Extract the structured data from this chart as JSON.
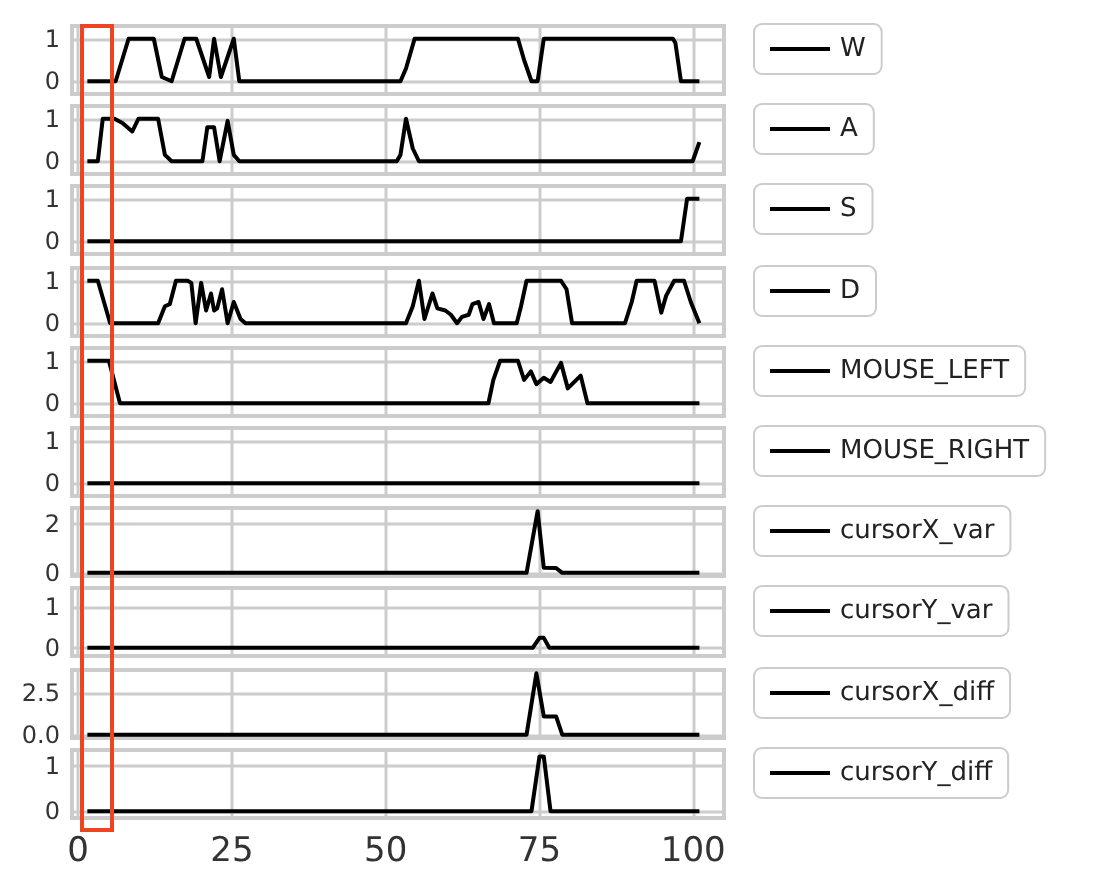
{
  "chart_data": [
    {
      "type": "line",
      "series": [
        {
          "name": "W",
          "color": "#000000",
          "x": [
            1.5,
            6.1,
            8.2,
            12.3,
            13.6,
            15.2,
            17.3,
            19.2,
            21.3,
            22.1,
            23.2,
            25.3,
            26.2,
            52.4,
            53.3,
            54.7,
            71.5,
            72.5,
            73.7,
            74.7,
            75.7,
            96.7,
            97.1,
            98,
            101
          ],
          "values": [
            0,
            0,
            1,
            1,
            0.1,
            0,
            1,
            1,
            0.1,
            1,
            0.1,
            1,
            0,
            0,
            0.3,
            1,
            1,
            0.5,
            0,
            0,
            1,
            1,
            0.9,
            0,
            0
          ]
        }
      ],
      "xlim": [
        -1,
        105
      ],
      "ylim": [
        -0.3,
        1.3
      ],
      "xticks": [
        0,
        25,
        50,
        75,
        100
      ],
      "yticks": [
        0,
        1
      ],
      "tick_labels": "y",
      "grid": true,
      "legend": "right"
    },
    {
      "type": "line",
      "series": [
        {
          "name": "A",
          "color": "#000000",
          "x": [
            1.5,
            3.2,
            4,
            5.9,
            7.2,
            8.8,
            9.8,
            13,
            14.1,
            15.2,
            20.2,
            21,
            22.1,
            23,
            24.3,
            25.3,
            26.2,
            51.8,
            52.4,
            53.3,
            54.4,
            55.4,
            99.9,
            101
          ],
          "values": [
            0,
            0,
            1,
            1,
            0.9,
            0.7,
            1,
            1,
            0.15,
            0,
            0,
            0.8,
            0.8,
            0,
            0.95,
            0.15,
            0,
            0,
            0.15,
            1,
            0.3,
            0,
            0,
            0.45
          ]
        }
      ],
      "xlim": [
        -1,
        105
      ],
      "ylim": [
        -0.3,
        1.3
      ],
      "xticks": [
        0,
        25,
        50,
        75,
        100
      ],
      "yticks": [
        0,
        1
      ],
      "tick_labels": "y",
      "grid": true,
      "legend": "right"
    },
    {
      "type": "line",
      "series": [
        {
          "name": "S",
          "color": "#000000",
          "x": [
            1.5,
            98,
            99,
            101
          ],
          "values": [
            0,
            0,
            1,
            1
          ]
        }
      ],
      "xlim": [
        -1,
        105
      ],
      "ylim": [
        -0.3,
        1.3
      ],
      "xticks": [
        0,
        25,
        50,
        75,
        100
      ],
      "yticks": [
        0,
        1
      ],
      "tick_labels": "y",
      "grid": true,
      "legend": "right"
    },
    {
      "type": "line",
      "series": [
        {
          "name": "D",
          "color": "#000000",
          "x": [
            1.5,
            3.2,
            4.2,
            5.2,
            13,
            14.1,
            14.9,
            15.9,
            17.8,
            18.4,
            19.1,
            20,
            20.8,
            21.6,
            22.1,
            22.6,
            23.4,
            24.3,
            25.3,
            26.4,
            27.2,
            53.3,
            54.4,
            55.4,
            56.3,
            57.6,
            58.4,
            59.7,
            60.6,
            61.6,
            62.4,
            63.5,
            64.1,
            65.1,
            65.9,
            66.8,
            67.6,
            71.3,
            72,
            72.9,
            78.5,
            79.4,
            80.3,
            88.9,
            90,
            90.8,
            93.7,
            94.8,
            95.6,
            96.9,
            98.5,
            99.6,
            101
          ],
          "values": [
            1,
            1,
            0.5,
            0,
            0,
            0.4,
            0.45,
            1,
            1,
            0.95,
            0,
            0.95,
            0.3,
            0.7,
            0.3,
            0.35,
            0.8,
            0,
            0.5,
            0.1,
            0,
            0,
            0.4,
            1,
            0.1,
            0.7,
            0.35,
            0.3,
            0.2,
            0,
            0.15,
            0.2,
            0.45,
            0.5,
            0.1,
            0.45,
            0,
            0,
            0.4,
            1,
            1,
            0.8,
            0,
            0,
            0.5,
            1,
            1,
            0.25,
            0.65,
            1,
            1,
            0.5,
            0
          ]
        }
      ],
      "xlim": [
        -1,
        105
      ],
      "ylim": [
        -0.3,
        1.3
      ],
      "xticks": [
        0,
        25,
        50,
        75,
        100
      ],
      "yticks": [
        0,
        1
      ],
      "tick_labels": "y",
      "grid": true,
      "legend": "right"
    },
    {
      "type": "line",
      "series": [
        {
          "name": "MOUSE_LEFT",
          "color": "#000000",
          "x": [
            1.5,
            5,
            6.8,
            66.7,
            67.5,
            68.6,
            71.5,
            72.5,
            73.6,
            74.5,
            75.7,
            76.8,
            78.5,
            79.6,
            81.7,
            82.8,
            101
          ],
          "values": [
            1,
            1,
            0,
            0,
            0.55,
            1,
            1,
            0.55,
            0.75,
            0.45,
            0.6,
            0.5,
            0.95,
            0.35,
            0.65,
            0,
            0
          ]
        }
      ],
      "xlim": [
        -1,
        105
      ],
      "ylim": [
        -0.3,
        1.3
      ],
      "xticks": [
        0,
        25,
        50,
        75,
        100
      ],
      "yticks": [
        0,
        1
      ],
      "tick_labels": "y",
      "grid": true,
      "legend": "right"
    },
    {
      "type": "line",
      "series": [
        {
          "name": "MOUSE_RIGHT",
          "color": "#000000",
          "x": [
            1.5,
            101
          ],
          "values": [
            0,
            0
          ]
        }
      ],
      "xlim": [
        -1,
        105
      ],
      "ylim": [
        -0.3,
        1.3
      ],
      "xticks": [
        0,
        25,
        50,
        75,
        100
      ],
      "yticks": [
        0,
        1
      ],
      "tick_labels": "y",
      "grid": true,
      "legend": "right"
    },
    {
      "type": "line",
      "series": [
        {
          "name": "cursorX_var",
          "color": "#000000",
          "x": [
            1.5,
            72.9,
            74.7,
            75.7,
            77.7,
            78.7,
            101
          ],
          "values": [
            0,
            0,
            2.54,
            0.21,
            0.2,
            0,
            0
          ]
        }
      ],
      "xlim": [
        -1,
        105
      ],
      "ylim": [
        -0.13,
        2.67
      ],
      "xticks": [
        0,
        25,
        50,
        75,
        100
      ],
      "yticks": [
        0,
        2
      ],
      "tick_labels": "y",
      "grid": true,
      "legend": "right"
    },
    {
      "type": "line",
      "series": [
        {
          "name": "cursorY_var",
          "color": "#000000",
          "x": [
            1.5,
            73.9,
            75,
            75.7,
            76.6,
            101
          ],
          "values": [
            0,
            0,
            0.24,
            0.24,
            0,
            0
          ]
        }
      ],
      "xlim": [
        -1,
        105
      ],
      "ylim": [
        -0.2,
        1.45
      ],
      "xticks": [
        0,
        25,
        50,
        75,
        100
      ],
      "yticks": [
        0,
        1
      ],
      "tick_labels": "y",
      "grid": true,
      "legend": "right"
    },
    {
      "type": "line",
      "series": [
        {
          "name": "cursorX_diff",
          "color": "#000000",
          "x": [
            1.5,
            72.9,
            74.5,
            75.7,
            77.7,
            78.7,
            101
          ],
          "values": [
            0,
            0,
            3.7,
            1.1,
            1.1,
            0,
            0
          ]
        }
      ],
      "xlim": [
        -1,
        105
      ],
      "ylim": [
        -0.2,
        3.9
      ],
      "xticks": [
        0,
        25,
        50,
        75,
        100
      ],
      "yticks": [
        {
          "value": 0,
          "label": "0.0"
        },
        {
          "value": 2.5,
          "label": "2.5"
        }
      ],
      "tick_labels": "y",
      "grid": true,
      "legend": "right"
    },
    {
      "type": "line",
      "series": [
        {
          "name": "cursorY_diff",
          "color": "#000000",
          "x": [
            1.5,
            73.7,
            75,
            75.7,
            76.8,
            101
          ],
          "values": [
            0,
            0,
            1.2,
            1.2,
            0,
            0
          ]
        }
      ],
      "xlim": [
        -1,
        105
      ],
      "ylim": [
        -0.15,
        1.34
      ],
      "xticks": [
        0,
        25,
        50,
        75,
        100
      ],
      "yticks": [
        0,
        1
      ],
      "grid": true,
      "legend": "right"
    }
  ]
}
